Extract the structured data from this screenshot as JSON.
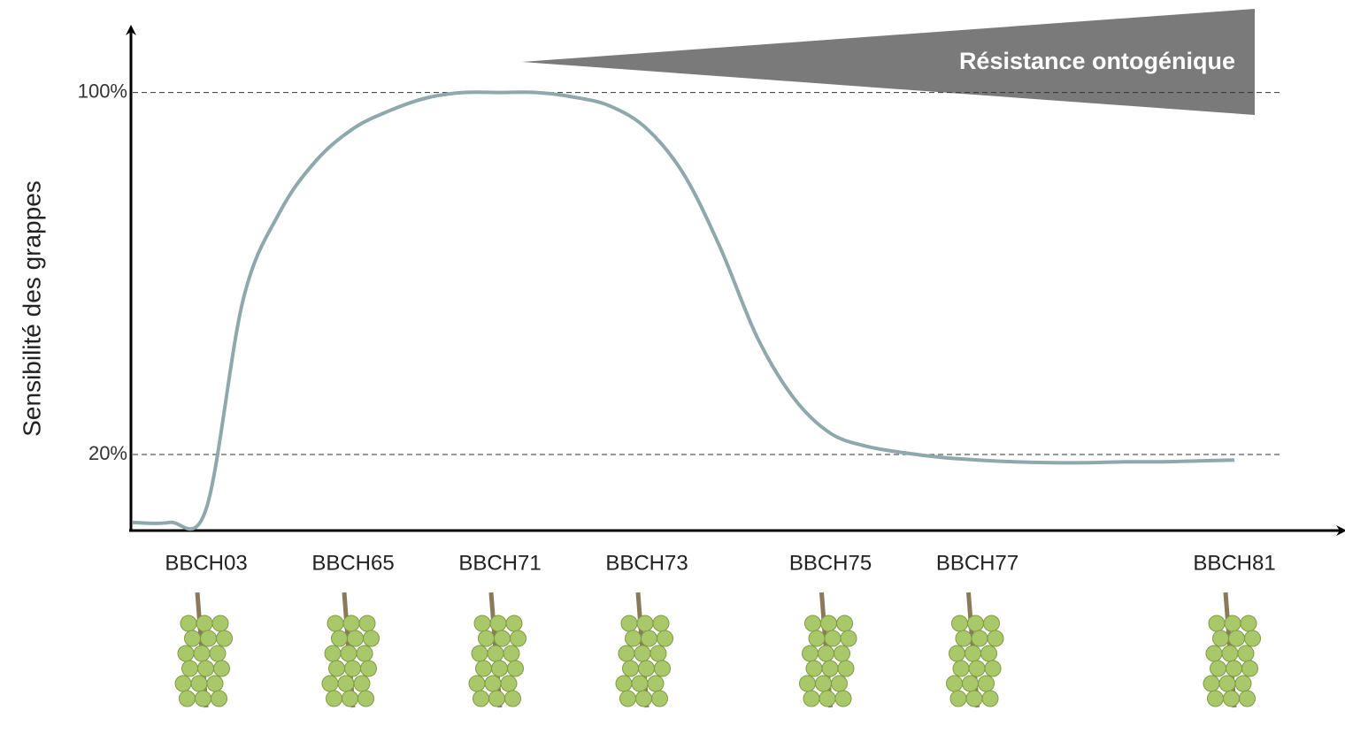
{
  "chart_data": {
    "type": "line",
    "y_label": "Sensibilité des grappes",
    "annotation": "Résistance ontogénique",
    "categories": [
      null,
      null,
      "BBCH03",
      null,
      null,
      null,
      "BBCH65",
      null,
      null,
      null,
      "BBCH71",
      null,
      null,
      null,
      "BBCH73",
      null,
      null,
      null,
      null,
      "BBCH75",
      null,
      null,
      null,
      "BBCH77",
      null,
      null,
      null,
      null,
      null,
      null,
      "BBCH81"
    ],
    "series": [
      {
        "name": "Sensibilité",
        "color": "#8ea8ac",
        "values": [
          5,
          5,
          8,
          54,
          73.5,
          85,
          92,
          96,
          98.8,
          100,
          100,
          100,
          99,
          97,
          92,
          82,
          65.7,
          46,
          32.5,
          24.7,
          21.8,
          20.4,
          19.4,
          18.8,
          18.4,
          18.2,
          18.2,
          18.4,
          18.4,
          18.6,
          18.8
        ]
      }
    ],
    "ylim": [
      3.6,
      113.6
    ],
    "yticks": [
      {
        "value": 20,
        "label": "20%"
      },
      {
        "value": 100,
        "label": "100%"
      }
    ],
    "grid": true
  }
}
